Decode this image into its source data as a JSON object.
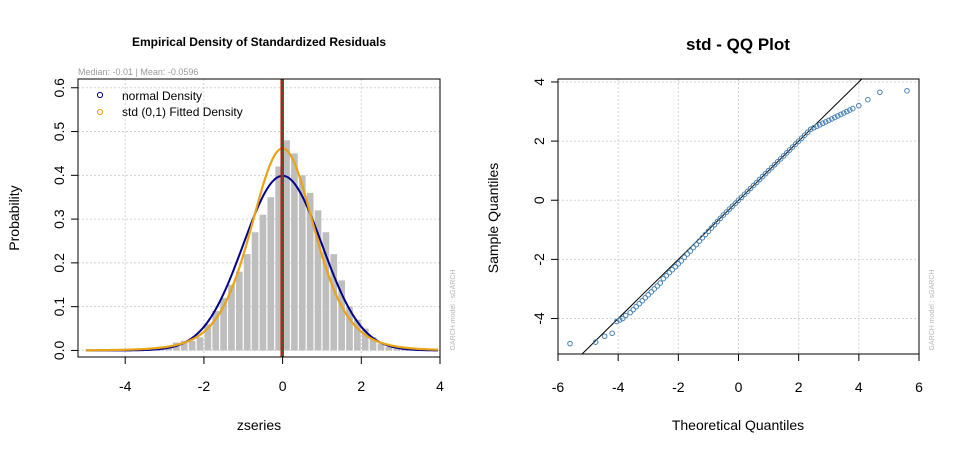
{
  "chart_data": [
    {
      "type": "bar",
      "title": "Empirical Density of Standardized Residuals",
      "subtitle": "Median:  -0.01 | Mean:  -0.0596",
      "xlabel": "zseries",
      "ylabel": "Probability",
      "side_note": "GARCH model : sGARCH",
      "xlim": [
        -5.2,
        4.0
      ],
      "ylim": [
        -0.015,
        0.62
      ],
      "xticks": [
        "-4",
        "-2",
        "0",
        "2",
        "4"
      ],
      "yticks": [
        "0.0",
        "0.1",
        "0.2",
        "0.3",
        "0.4",
        "0.5",
        "0.6"
      ],
      "grid": true,
      "legend_position": "top-left",
      "legend": [
        {
          "label": "normal Density",
          "color": "#00008B"
        },
        {
          "label": "std (0,1) Fitted Density",
          "color": "#E8A317"
        }
      ],
      "bin_width": 0.2,
      "bins_left": [
        -5.0,
        -4.8,
        -4.6,
        -4.4,
        -4.2,
        -4.0,
        -3.8,
        -3.6,
        -3.4,
        -3.2,
        -3.0,
        -2.8,
        -2.6,
        -2.4,
        -2.2,
        -2.0,
        -1.8,
        -1.6,
        -1.4,
        -1.2,
        -1.0,
        -0.8,
        -0.6,
        -0.4,
        -0.2,
        0.0,
        0.2,
        0.4,
        0.6,
        0.8,
        1.0,
        1.2,
        1.4,
        1.6,
        1.8,
        2.0,
        2.2,
        2.4,
        2.6,
        2.8,
        3.0,
        3.2,
        3.4,
        3.6
      ],
      "density": [
        0.002,
        0.0,
        0.002,
        0.002,
        0.002,
        0.004,
        0.004,
        0.004,
        0.004,
        0.008,
        0.01,
        0.018,
        0.022,
        0.022,
        0.03,
        0.06,
        0.09,
        0.12,
        0.15,
        0.18,
        0.22,
        0.27,
        0.31,
        0.35,
        0.42,
        0.48,
        0.45,
        0.4,
        0.36,
        0.32,
        0.27,
        0.22,
        0.16,
        0.1,
        0.07,
        0.05,
        0.03,
        0.016,
        0.008,
        0.004,
        0.003,
        0.002,
        0.001,
        0.001
      ],
      "median_line_x": -0.01,
      "mean_line_x": -0.0596,
      "normal_density": {
        "mean": 0,
        "sd": 1,
        "color": "#00008B"
      },
      "std_fitted_density": {
        "shape": 6.5,
        "color": "#E8A317"
      },
      "colors": {
        "bars": "#BEBEBE",
        "median_line": "#B22222",
        "mean_line": "#2E6B2E",
        "grid": "#D3D3D3"
      }
    },
    {
      "type": "scatter",
      "title": "std - QQ Plot",
      "xlabel": "Theoretical Quantiles",
      "ylabel": "Sample Quantiles",
      "side_note": "GARCH model : sGARCH",
      "xlim": [
        -6,
        6
      ],
      "ylim": [
        -5.2,
        4.1
      ],
      "xticks": [
        "-6",
        "-4",
        "-2",
        "0",
        "2",
        "4",
        "6"
      ],
      "yticks": [
        "-4",
        "-2",
        "0",
        "2",
        "4"
      ],
      "grid": true,
      "reference_line": {
        "slope": 1.0,
        "intercept": 0.0,
        "color": "#000000"
      },
      "points_color": "#4682B4",
      "points_x": [
        -5.6,
        -4.75,
        -4.45,
        -4.2,
        -4.05,
        -3.95,
        -3.85,
        -3.75,
        -3.6,
        -3.5,
        -3.4,
        -3.3,
        -3.2,
        -3.1,
        -3.0,
        -2.9,
        -2.8,
        -2.7,
        -2.6,
        -2.5,
        -2.4,
        -2.3,
        -2.2,
        -2.1,
        -2.0,
        -1.9,
        -1.8,
        -1.7,
        -1.6,
        -1.5,
        -1.4,
        -1.3,
        -1.2,
        -1.1,
        -1.0,
        -0.9,
        -0.8,
        -0.7,
        -0.6,
        -0.5,
        -0.4,
        -0.3,
        -0.2,
        -0.1,
        0.0,
        0.1,
        0.2,
        0.3,
        0.4,
        0.5,
        0.6,
        0.7,
        0.8,
        0.9,
        1.0,
        1.1,
        1.2,
        1.3,
        1.4,
        1.5,
        1.6,
        1.7,
        1.8,
        1.9,
        2.0,
        2.1,
        2.2,
        2.3,
        2.4,
        2.5,
        2.6,
        2.7,
        2.8,
        2.9,
        3.0,
        3.1,
        3.2,
        3.3,
        3.4,
        3.5,
        3.6,
        3.7,
        3.8,
        4.0,
        4.3,
        4.7,
        5.6
      ],
      "points_y": [
        -4.85,
        -4.8,
        -4.6,
        -4.5,
        -4.1,
        -4.05,
        -4.0,
        -3.9,
        -3.8,
        -3.7,
        -3.6,
        -3.5,
        -3.4,
        -3.3,
        -3.2,
        -3.1,
        -3.0,
        -2.9,
        -2.8,
        -2.65,
        -2.55,
        -2.45,
        -2.35,
        -2.25,
        -2.15,
        -2.05,
        -1.93,
        -1.82,
        -1.72,
        -1.6,
        -1.5,
        -1.38,
        -1.27,
        -1.16,
        -1.05,
        -0.94,
        -0.83,
        -0.72,
        -0.61,
        -0.5,
        -0.4,
        -0.3,
        -0.2,
        -0.1,
        0.0,
        0.1,
        0.2,
        0.3,
        0.4,
        0.5,
        0.6,
        0.7,
        0.8,
        0.9,
        1.0,
        1.1,
        1.2,
        1.3,
        1.4,
        1.5,
        1.6,
        1.7,
        1.8,
        1.9,
        2.0,
        2.1,
        2.2,
        2.3,
        2.4,
        2.45,
        2.5,
        2.55,
        2.6,
        2.65,
        2.7,
        2.75,
        2.8,
        2.85,
        2.9,
        2.95,
        3.0,
        3.05,
        3.1,
        3.2,
        3.4,
        3.65,
        3.7
      ]
    }
  ]
}
